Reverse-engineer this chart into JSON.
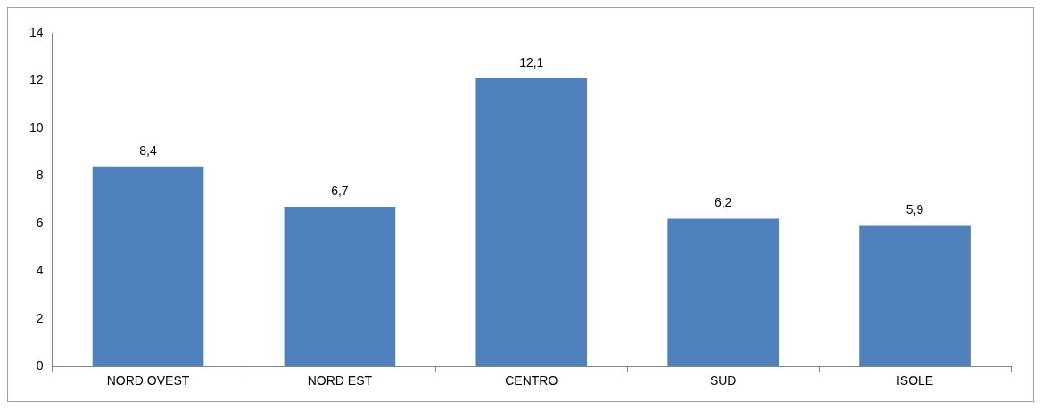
{
  "chart_data": {
    "type": "bar",
    "categories": [
      "NORD OVEST",
      "NORD EST",
      "CENTRO",
      "SUD",
      "ISOLE"
    ],
    "values": [
      8.4,
      6.7,
      12.1,
      6.2,
      5.9
    ],
    "value_labels": [
      "8,4",
      "6,7",
      "12,1",
      "6,2",
      "5,9"
    ],
    "color": "#4f81bd",
    "ylim": [
      0,
      14
    ],
    "yticks": [
      0,
      2,
      4,
      6,
      8,
      10,
      12,
      14
    ],
    "grid": false,
    "legend": false
  }
}
